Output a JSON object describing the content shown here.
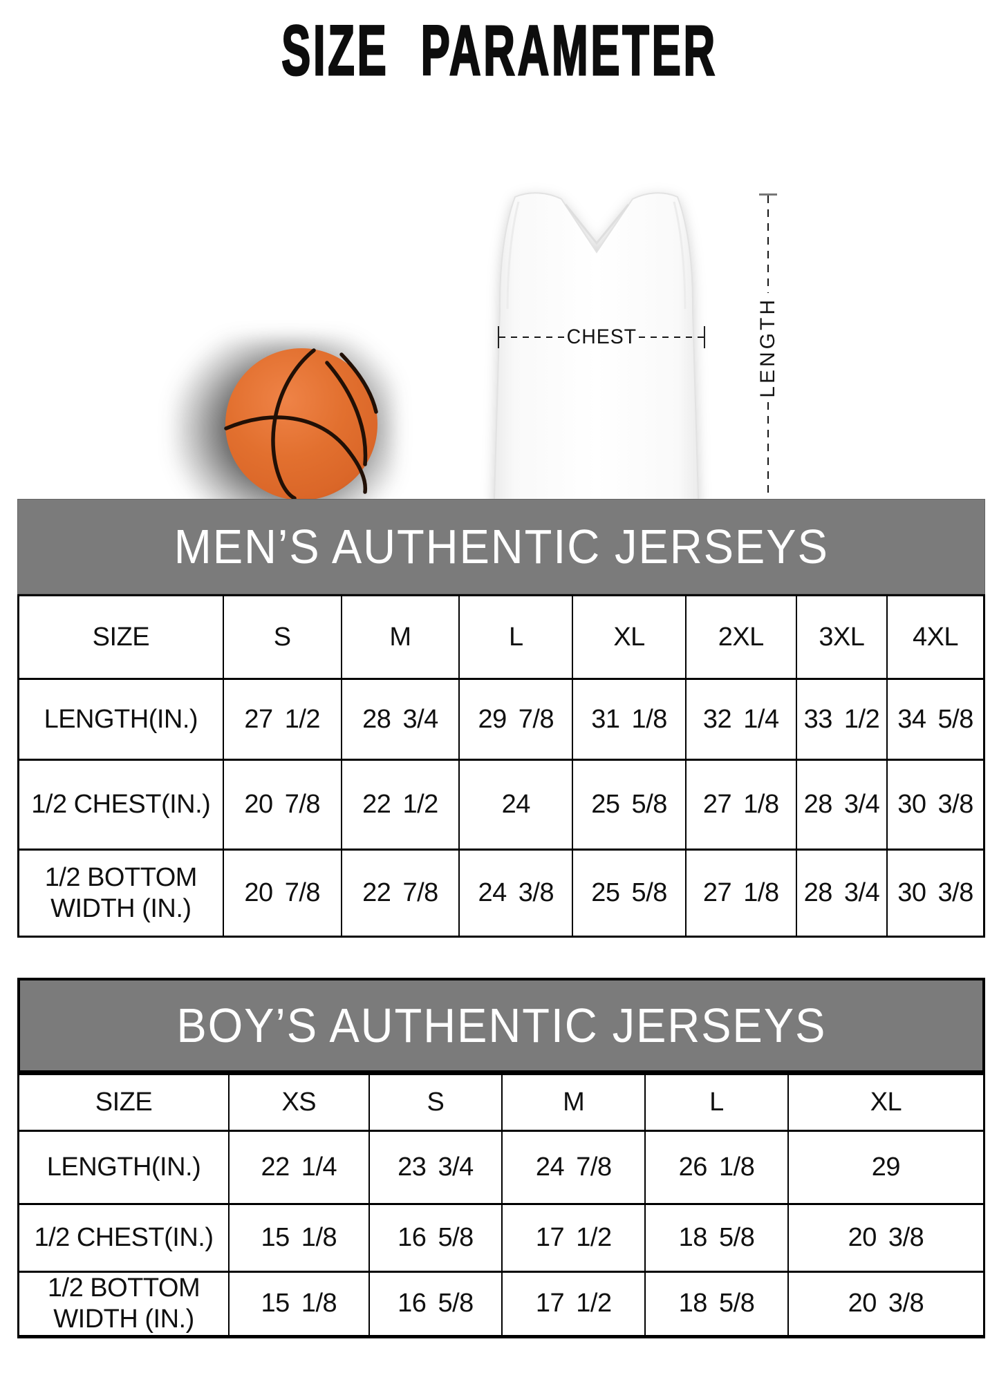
{
  "title": "SIZE PARAMETER",
  "illustration": {
    "chest_label": "CHEST",
    "length_label": "LENGTH",
    "ball_color": "#e0702f",
    "ball_seam_color": "#211006",
    "header_gray": "#7b7b7b"
  },
  "mens_table": {
    "title": "MEN’S AUTHENTIC JERSEYS",
    "size_header": "SIZE",
    "sizes": [
      "S",
      "M",
      "L",
      "XL",
      "2XL",
      "3XL",
      "4XL"
    ],
    "rows": [
      {
        "label": "LENGTH(IN.)",
        "values": [
          "27 1/2",
          "28 3/4",
          "29 7/8",
          "31 1/8",
          "32 1/4",
          "33 1/2",
          "34 5/8"
        ]
      },
      {
        "label": "1/2 CHEST(IN.)",
        "values": [
          "20 7/8",
          "22 1/2",
          "24",
          "25 5/8",
          "27 1/8",
          "28 3/4",
          "30 3/8"
        ]
      },
      {
        "label": "1/2 BOTTOM WIDTH (IN.)",
        "values": [
          "20 7/8",
          "22 7/8",
          "24 3/8",
          "25 5/8",
          "27 1/8",
          "28 3/4",
          "30 3/8"
        ]
      }
    ]
  },
  "boys_table": {
    "title": "BOY’S AUTHENTIC JERSEYS",
    "size_header": "SIZE",
    "sizes": [
      "XS",
      "S",
      "M",
      "L",
      "XL"
    ],
    "rows": [
      {
        "label": "LENGTH(IN.)",
        "values": [
          "22 1/4",
          "23 3/4",
          "24 7/8",
          "26 1/8",
          "29"
        ]
      },
      {
        "label": "1/2 CHEST(IN.)",
        "values": [
          "15 1/8",
          "16 5/8",
          "17 1/2",
          "18 5/8",
          "20 3/8"
        ]
      },
      {
        "label": "1/2 BOTTOM WIDTH (IN.)",
        "values": [
          "15 1/8",
          "16 5/8",
          "17 1/2",
          "18 5/8",
          "20 3/8"
        ]
      }
    ]
  }
}
